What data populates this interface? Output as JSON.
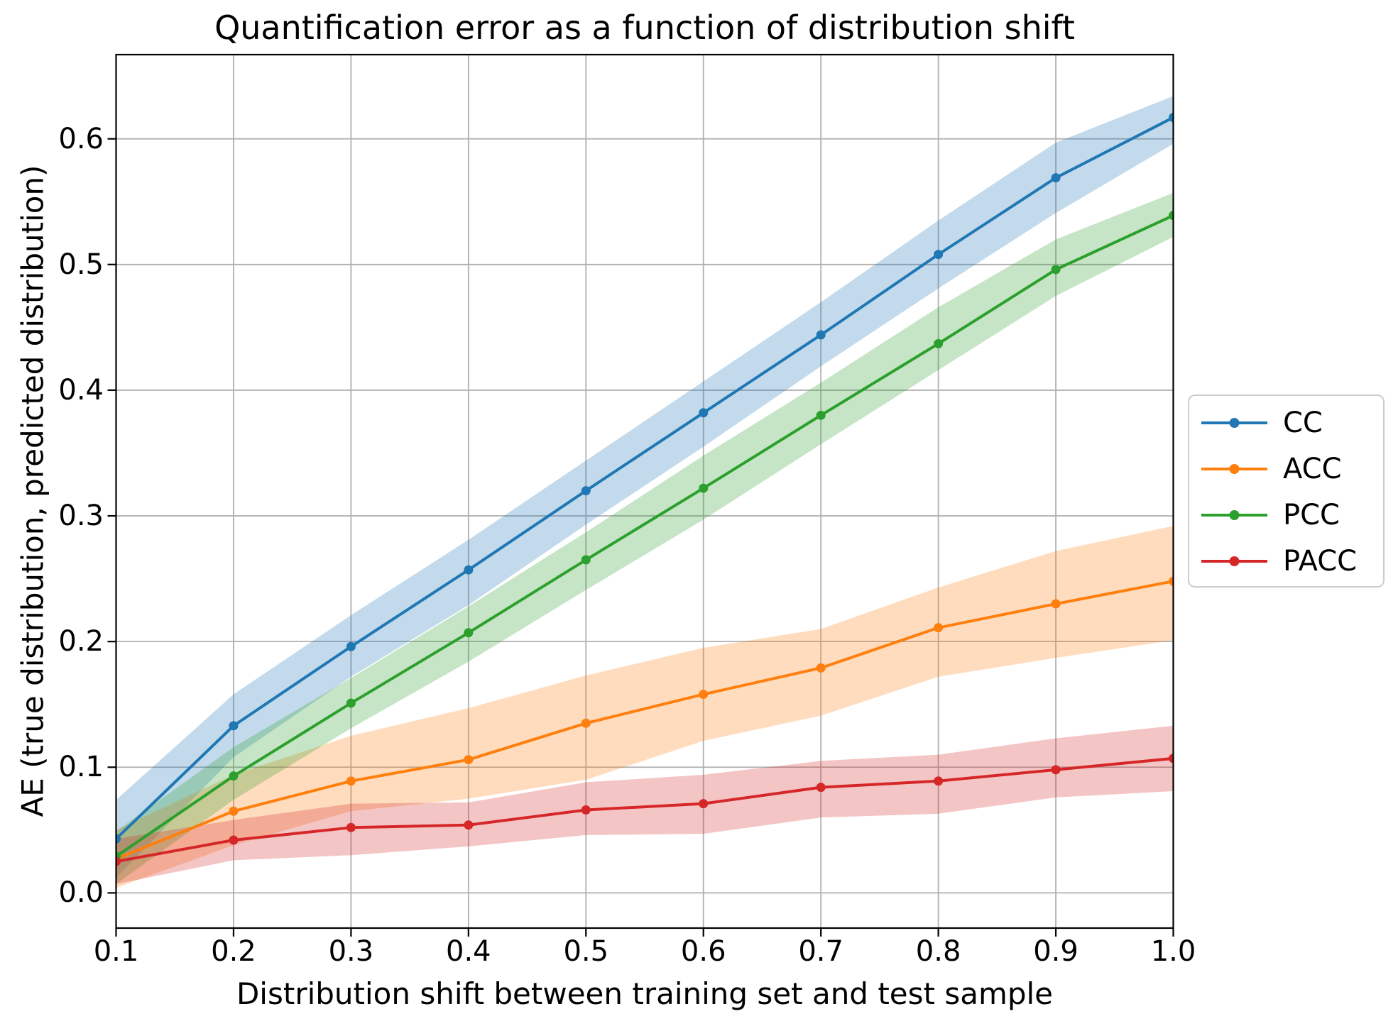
{
  "figure": {
    "background": "#ffffff"
  },
  "chart_data": {
    "type": "line",
    "title": "Quantification error as a function of distribution shift",
    "xlabel": "Distribution shift between training set and test sample",
    "ylabel": "AE (true distribution, predicted distribution)",
    "x": [
      0.1,
      0.2,
      0.3,
      0.4,
      0.5,
      0.6,
      0.7,
      0.8,
      0.9,
      1.0
    ],
    "x_tick_labels": [
      "0.1",
      "0.2",
      "0.3",
      "0.4",
      "0.5",
      "0.6",
      "0.7",
      "0.8",
      "0.9",
      "1.0"
    ],
    "y_tick_values": [
      0.0,
      0.1,
      0.2,
      0.3,
      0.4,
      0.5,
      0.6
    ],
    "y_tick_labels": [
      "0.0",
      "0.1",
      "0.2",
      "0.3",
      "0.4",
      "0.5",
      "0.6"
    ],
    "xlim": [
      0.1,
      1.0
    ],
    "ylim": [
      -0.028,
      0.667
    ],
    "grid": true,
    "grid_color": "#b0b0b0",
    "axes_color": "#000000",
    "band_opacity": 0.27,
    "legend_position": "outside-right",
    "series": [
      {
        "name": "CC",
        "color": "#1f77b4",
        "values": [
          0.043,
          0.133,
          0.196,
          0.257,
          0.32,
          0.382,
          0.444,
          0.508,
          0.569,
          0.617
        ],
        "band_lower": [
          0.012,
          0.108,
          0.172,
          0.229,
          0.293,
          0.355,
          0.419,
          0.481,
          0.541,
          0.596
        ],
        "band_upper": [
          0.074,
          0.158,
          0.221,
          0.281,
          0.344,
          0.407,
          0.47,
          0.535,
          0.597,
          0.634
        ]
      },
      {
        "name": "ACC",
        "color": "#ff7f0e",
        "values": [
          0.027,
          0.065,
          0.089,
          0.106,
          0.135,
          0.158,
          0.179,
          0.211,
          0.23,
          0.248
        ],
        "band_lower": [
          0.004,
          0.038,
          0.065,
          0.075,
          0.09,
          0.121,
          0.141,
          0.172,
          0.187,
          0.201
        ],
        "band_upper": [
          0.05,
          0.094,
          0.125,
          0.147,
          0.173,
          0.195,
          0.21,
          0.243,
          0.272,
          0.292
        ]
      },
      {
        "name": "PCC",
        "color": "#2ca02c",
        "values": [
          0.029,
          0.093,
          0.151,
          0.207,
          0.265,
          0.322,
          0.38,
          0.437,
          0.496,
          0.539
        ],
        "band_lower": [
          0.007,
          0.074,
          0.131,
          0.184,
          0.241,
          0.297,
          0.357,
          0.416,
          0.475,
          0.522
        ],
        "band_upper": [
          0.049,
          0.116,
          0.171,
          0.228,
          0.287,
          0.348,
          0.406,
          0.466,
          0.52,
          0.557
        ]
      },
      {
        "name": "PACC",
        "color": "#d62728",
        "values": [
          0.025,
          0.042,
          0.052,
          0.054,
          0.066,
          0.071,
          0.084,
          0.089,
          0.098,
          0.107
        ],
        "band_lower": [
          0.007,
          0.026,
          0.03,
          0.037,
          0.046,
          0.047,
          0.06,
          0.063,
          0.076,
          0.081
        ],
        "band_upper": [
          0.043,
          0.058,
          0.071,
          0.072,
          0.088,
          0.094,
          0.105,
          0.11,
          0.123,
          0.133
        ]
      }
    ]
  }
}
